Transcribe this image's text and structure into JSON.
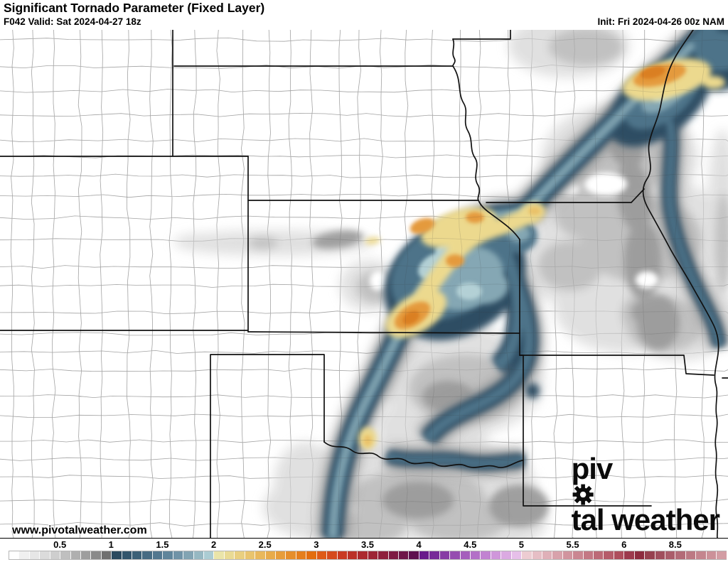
{
  "header": {
    "title": "Significant Tornado Parameter (Fixed Layer)",
    "valid_label": "F042 Valid: Sat 2024-04-27 18z",
    "init_label": "Init: Fri 2024-04-26 00z NAM"
  },
  "map": {
    "watermark": "www.pivotalweather.com",
    "logo_text_before_gear": "piv",
    "logo_text_after_gear": "tal weather",
    "palette": {
      "county_line": "#b2b2b2",
      "state_line": "#111111",
      "grey_light": "#dfdfdf",
      "grey_mid": "#c0c0c0",
      "grey_dark": "#9b9b9b",
      "blue_dark": "#2e4d63",
      "blue_mid": "#4e7389",
      "blue_light": "#85a7b4",
      "blue_pale": "#b3d0d5",
      "yellow": "#ecd98e",
      "yellow_deep": "#e9c169",
      "orange": "#e49a3e",
      "orange_deep": "#da7f22",
      "white": "#ffffff"
    }
  },
  "colorbar": {
    "labels": [
      {
        "text": "0.5",
        "index": 5
      },
      {
        "text": "1",
        "index": 10
      },
      {
        "text": "1.5",
        "index": 15
      },
      {
        "text": "2",
        "index": 20
      },
      {
        "text": "2.5",
        "index": 25
      },
      {
        "text": "3",
        "index": 30
      },
      {
        "text": "3.5",
        "index": 35
      },
      {
        "text": "4",
        "index": 40
      },
      {
        "text": "4.5",
        "index": 45
      },
      {
        "text": "5",
        "index": 50
      },
      {
        "text": "5.5",
        "index": 55
      },
      {
        "text": "6",
        "index": 60
      },
      {
        "text": "8.5",
        "index": 65
      }
    ],
    "cells": [
      "#ffffff",
      "#f0f0f0",
      "#e6e6e6",
      "#dbdbdb",
      "#cecece",
      "#bfbfbf",
      "#afafaf",
      "#9e9e9e",
      "#8a8a8a",
      "#707070",
      "#2b4a5f",
      "#32556c",
      "#3b6077",
      "#466b83",
      "#52778f",
      "#60859b",
      "#7093a7",
      "#82a4b3",
      "#96b8c2",
      "#abccd3",
      "#eae4a9",
      "#e9da94",
      "#e9cf80",
      "#e9c46e",
      "#e9b85c",
      "#e8ab4b",
      "#e79d3b",
      "#e68e2b",
      "#e57e1c",
      "#e36d0e",
      "#de5a17",
      "#d54a1d",
      "#c93a22",
      "#bb3128",
      "#ac2a2f",
      "#9d2536",
      "#8e203c",
      "#7e1b43",
      "#6e1649",
      "#5e104f",
      "#691a8b",
      "#782b98",
      "#873ca4",
      "#964db0",
      "#a55ebc",
      "#b370c7",
      "#c183d1",
      "#cf96da",
      "#dbaae2",
      "#e6bfe9",
      "#edccd2",
      "#e6bec5",
      "#dfb0b8",
      "#d8a2ab",
      "#d1949e",
      "#ca8691",
      "#c37884",
      "#bc6a77",
      "#b55c6a",
      "#ae4e5d",
      "#9c3a4d",
      "#8d2c3f",
      "#96414f",
      "#a04f5d",
      "#aa5d6a",
      "#b36b77",
      "#bc7983",
      "#c4858e",
      "#cc9199",
      "#d39da4"
    ]
  }
}
